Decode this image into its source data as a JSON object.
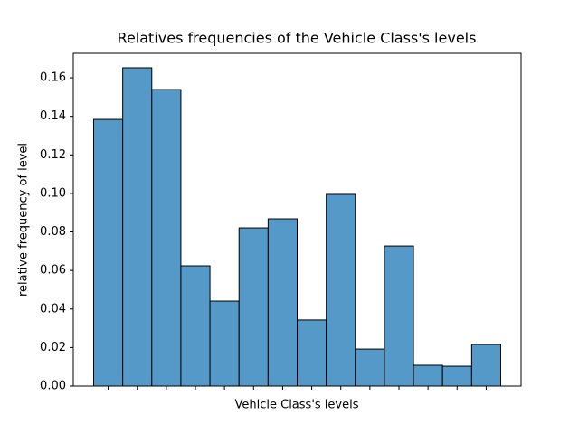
{
  "chart_data": {
    "type": "bar",
    "title": "Relatives frequencies of the Vehicle Class's levels",
    "x_label": "Vehicle Class's levels",
    "y_label": "relative frequency of level",
    "categories": [
      null,
      null,
      null,
      null,
      null,
      null,
      null,
      null,
      null,
      null,
      null,
      null,
      null,
      null
    ],
    "values": [
      0.1384,
      0.1652,
      0.1539,
      0.0624,
      0.0441,
      0.0821,
      0.0868,
      0.0343,
      0.0995,
      0.0192,
      0.0727,
      0.0108,
      0.0103,
      0.0216
    ],
    "color": "#5599c9",
    "ylim": [
      0,
      0.1727
    ],
    "yticks": [
      {
        "value": 0,
        "label": "0.00"
      },
      {
        "value": 0.02,
        "label": "0.02"
      },
      {
        "value": 0.04,
        "label": "0.04"
      },
      {
        "value": 0.06,
        "label": "0.06"
      },
      {
        "value": 0.08,
        "label": "0.08"
      },
      {
        "value": 0.1,
        "label": "0.10"
      },
      {
        "value": 0.12,
        "label": "0.12"
      },
      {
        "value": 0.14,
        "label": "0.14"
      },
      {
        "value": 0.16,
        "label": "0.16"
      }
    ],
    "grid": false
  }
}
